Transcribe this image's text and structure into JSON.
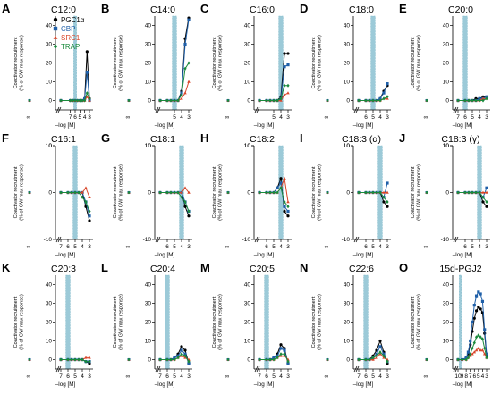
{
  "legend": [
    {
      "name": "PGC1α",
      "color": "#000000",
      "marker": "circle"
    },
    {
      "name": "CBP",
      "color": "#1f5fa8",
      "marker": "square"
    },
    {
      "name": "SRC1",
      "color": "#d9472b",
      "marker": "triangle"
    },
    {
      "name": "TRAP",
      "color": "#1a8a3c",
      "marker": "diamond"
    }
  ],
  "colors": {
    "shade": "#9ccad8",
    "axis": "#000000"
  },
  "common": {
    "ylabel_line1": "Coactivator recruitment",
    "ylabel_line2": "(% of GW max response)",
    "xlabel": "–log [M]",
    "infinity_tick": "∞",
    "y_ticks": [
      0,
      10,
      20,
      30,
      40
    ]
  },
  "chart_data": [
    {
      "type": "line",
      "letter": "A",
      "title": "C12:0",
      "x_ticks": [
        7,
        6,
        5,
        4,
        3
      ],
      "x": [
        9,
        7,
        6.5,
        6,
        5.5,
        5,
        4.5,
        4,
        3.5,
        3
      ],
      "shade": [
        6.3,
        5.7
      ],
      "ylim": [
        -5,
        45
      ],
      "series": [
        {
          "name": "PGC1α",
          "values": [
            0,
            0,
            0,
            0,
            0,
            0,
            0,
            1,
            26,
            1
          ]
        },
        {
          "name": "CBP",
          "values": [
            0,
            0,
            0,
            0,
            0,
            0,
            0,
            1,
            15,
            0
          ]
        },
        {
          "name": "SRC1",
          "values": [
            0,
            0,
            0,
            0,
            0,
            0,
            0,
            0,
            2,
            0
          ]
        },
        {
          "name": "TRAP",
          "values": [
            0,
            0,
            0,
            0,
            0,
            0,
            0,
            0,
            4,
            1
          ]
        }
      ]
    },
    {
      "type": "line",
      "letter": "B",
      "title": "C14:0",
      "x_ticks": [
        5,
        4,
        3
      ],
      "x": [
        7,
        6,
        5.5,
        5,
        4.5,
        4,
        3.5,
        3
      ],
      "shade": [
        5.3,
        4.7
      ],
      "ylim": [
        -5,
        45
      ],
      "series": [
        {
          "name": "PGC1α",
          "values": [
            0,
            0,
            0,
            0,
            0,
            5,
            33,
            44
          ]
        },
        {
          "name": "CBP",
          "values": [
            0,
            0,
            0,
            0,
            0,
            4,
            30,
            43
          ]
        },
        {
          "name": "SRC1",
          "values": [
            0,
            0,
            0,
            0,
            0,
            1,
            4,
            10
          ]
        },
        {
          "name": "TRAP",
          "values": [
            0,
            0,
            0,
            0,
            0,
            3,
            17,
            20
          ]
        }
      ]
    },
    {
      "type": "line",
      "letter": "C",
      "title": "C16:0",
      "x_ticks": [
        5,
        4,
        3
      ],
      "x": [
        7,
        6,
        5.5,
        5,
        4.5,
        4,
        3.5,
        3
      ],
      "shade": [
        4.3,
        3.7
      ],
      "ylim": [
        -5,
        45
      ],
      "series": [
        {
          "name": "PGC1α",
          "values": [
            0,
            0,
            0,
            0,
            0,
            2,
            25,
            25
          ]
        },
        {
          "name": "CBP",
          "values": [
            0,
            0,
            0,
            0,
            0,
            1,
            18,
            19
          ]
        },
        {
          "name": "SRC1",
          "values": [
            0,
            0,
            0,
            0,
            0,
            0,
            3,
            4
          ]
        },
        {
          "name": "TRAP",
          "values": [
            0,
            0,
            0,
            0,
            0,
            1,
            8,
            8
          ]
        }
      ]
    },
    {
      "type": "line",
      "letter": "D",
      "title": "C18:0",
      "x_ticks": [
        6,
        5,
        4,
        3
      ],
      "x": [
        7,
        6,
        5.5,
        5,
        4.5,
        4,
        3.5,
        3
      ],
      "shade": [
        5.3,
        4.7
      ],
      "ylim": [
        -5,
        45
      ],
      "series": [
        {
          "name": "PGC1α",
          "values": [
            0,
            0,
            0,
            0,
            0,
            1,
            5,
            8
          ]
        },
        {
          "name": "CBP",
          "values": [
            0,
            0,
            0,
            0,
            0,
            1,
            4,
            9
          ]
        },
        {
          "name": "SRC1",
          "values": [
            0,
            0,
            0,
            0,
            0,
            0,
            1,
            1
          ]
        },
        {
          "name": "TRAP",
          "values": [
            0,
            0,
            0,
            0,
            0,
            0,
            1,
            2
          ]
        }
      ]
    },
    {
      "type": "line",
      "letter": "E",
      "title": "C20:0",
      "x_ticks": [
        7,
        6,
        5,
        4,
        3
      ],
      "x": [
        7,
        6,
        5.5,
        5,
        4.5,
        4,
        3.5,
        3
      ],
      "shade": [
        6.3,
        5.7
      ],
      "ylim": [
        -5,
        45
      ],
      "series": [
        {
          "name": "PGC1α",
          "values": [
            0,
            0,
            0,
            0,
            1,
            1,
            2,
            2
          ]
        },
        {
          "name": "CBP",
          "values": [
            0,
            0,
            0,
            0,
            0,
            1,
            1,
            2
          ]
        },
        {
          "name": "SRC1",
          "values": [
            0,
            0,
            0,
            0,
            0,
            0,
            1,
            1
          ]
        },
        {
          "name": "TRAP",
          "values": [
            0,
            0,
            0,
            0,
            0,
            0,
            0,
            1
          ]
        }
      ]
    },
    {
      "type": "line",
      "letter": "F",
      "title": "C16:1",
      "x_ticks": [
        7,
        6,
        5,
        4,
        3
      ],
      "x": [
        7,
        6,
        5.5,
        5,
        4.5,
        4,
        3.5,
        3
      ],
      "shade": [
        5.3,
        4.7
      ],
      "ylim": [
        -10,
        10
      ],
      "series": [
        {
          "name": "PGC1α",
          "values": [
            0,
            0,
            0,
            0,
            0,
            0,
            -3,
            -6
          ]
        },
        {
          "name": "CBP",
          "values": [
            0,
            0,
            0,
            0,
            0,
            0,
            -2,
            -5
          ]
        },
        {
          "name": "SRC1",
          "values": [
            0,
            0,
            0,
            0,
            0,
            0,
            1,
            -1
          ]
        },
        {
          "name": "TRAP",
          "values": [
            0,
            0,
            0,
            0,
            0,
            -1,
            -2,
            -4
          ]
        }
      ]
    },
    {
      "type": "line",
      "letter": "G",
      "title": "C18:1",
      "x_ticks": [
        6,
        5,
        4,
        3
      ],
      "x": [
        7,
        6,
        5.5,
        5,
        4.5,
        4,
        3.5,
        3
      ],
      "shade": [
        4.3,
        3.7
      ],
      "ylim": [
        -10,
        10
      ],
      "series": [
        {
          "name": "PGC1α",
          "values": [
            0,
            0,
            0,
            0,
            0,
            0,
            -3,
            -5
          ]
        },
        {
          "name": "CBP",
          "values": [
            0,
            0,
            0,
            0,
            0,
            0,
            -2,
            -4
          ]
        },
        {
          "name": "SRC1",
          "values": [
            0,
            0,
            0,
            0,
            0,
            0,
            1,
            0
          ]
        },
        {
          "name": "TRAP",
          "values": [
            0,
            0,
            0,
            0,
            0,
            -1,
            -2,
            -4
          ]
        }
      ]
    },
    {
      "type": "line",
      "letter": "H",
      "title": "C18:2",
      "x_ticks": [
        6,
        5,
        4,
        3
      ],
      "x": [
        7,
        6,
        5.5,
        5,
        4.5,
        4,
        3.5,
        3
      ],
      "shade": [
        4.3,
        3.7
      ],
      "ylim": [
        -10,
        10
      ],
      "series": [
        {
          "name": "PGC1α",
          "values": [
            0,
            0,
            0,
            0,
            1,
            3,
            -4,
            -5
          ]
        },
        {
          "name": "CBP",
          "values": [
            0,
            0,
            0,
            0,
            1,
            2,
            -3,
            -4
          ]
        },
        {
          "name": "SRC1",
          "values": [
            0,
            0,
            0,
            0,
            0,
            1,
            3,
            -2
          ]
        },
        {
          "name": "TRAP",
          "values": [
            0,
            0,
            0,
            0,
            0,
            1,
            -2,
            -3
          ]
        }
      ]
    },
    {
      "type": "line",
      "letter": "I",
      "title": "C18:3 (α)",
      "x_ticks": [
        6,
        5,
        4,
        3
      ],
      "x": [
        7,
        6,
        5.5,
        5,
        4.5,
        4,
        3.5,
        3
      ],
      "shade": [
        4.3,
        3.7
      ],
      "ylim": [
        -10,
        10
      ],
      "series": [
        {
          "name": "PGC1α",
          "values": [
            0,
            0,
            0,
            0,
            0,
            0,
            -2,
            -3
          ]
        },
        {
          "name": "CBP",
          "values": [
            0,
            0,
            0,
            0,
            0,
            0,
            -1,
            2
          ]
        },
        {
          "name": "SRC1",
          "values": [
            0,
            0,
            0,
            0,
            0,
            0,
            0,
            0
          ]
        },
        {
          "name": "TRAP",
          "values": [
            0,
            0,
            0,
            0,
            0,
            0,
            -1,
            -2
          ]
        }
      ]
    },
    {
      "type": "line",
      "letter": "J",
      "title": "C18:3 (γ)",
      "x_ticks": [
        6,
        5,
        4,
        3
      ],
      "x": [
        7,
        6,
        5.5,
        5,
        4.5,
        4,
        3.5,
        3
      ],
      "shade": [
        4.3,
        3.7
      ],
      "ylim": [
        -10,
        10
      ],
      "series": [
        {
          "name": "PGC1α",
          "values": [
            0,
            0,
            0,
            0,
            0,
            0,
            -2,
            -3
          ]
        },
        {
          "name": "CBP",
          "values": [
            0,
            0,
            0,
            0,
            0,
            0,
            -1,
            1
          ]
        },
        {
          "name": "SRC1",
          "values": [
            0,
            0,
            0,
            0,
            0,
            0,
            0,
            0
          ]
        },
        {
          "name": "TRAP",
          "values": [
            0,
            0,
            0,
            0,
            0,
            0,
            -1,
            -2
          ]
        }
      ]
    },
    {
      "type": "line",
      "letter": "K",
      "title": "C20:3",
      "x_ticks": [
        7,
        6,
        5,
        4,
        3
      ],
      "x": [
        7,
        6,
        5.5,
        5,
        4.5,
        4,
        3.5,
        3
      ],
      "shade": [
        6.3,
        5.7
      ],
      "ylim": [
        -5,
        45
      ],
      "series": [
        {
          "name": "PGC1α",
          "values": [
            0,
            0,
            0,
            0,
            0,
            0,
            -1,
            -2
          ]
        },
        {
          "name": "CBP",
          "values": [
            0,
            0,
            0,
            0,
            0,
            0,
            -1,
            -1
          ]
        },
        {
          "name": "SRC1",
          "values": [
            0,
            0,
            0,
            0,
            0,
            0,
            1,
            1
          ]
        },
        {
          "name": "TRAP",
          "values": [
            0,
            0,
            0,
            0,
            0,
            0,
            -1,
            -1
          ]
        }
      ]
    },
    {
      "type": "line",
      "letter": "L",
      "title": "C20:4",
      "x_ticks": [
        7,
        6,
        5,
        4,
        3
      ],
      "x": [
        7,
        6,
        5.5,
        5,
        4.5,
        4,
        3.5,
        3
      ],
      "shade": [
        6.3,
        5.7
      ],
      "ylim": [
        -5,
        45
      ],
      "series": [
        {
          "name": "PGC1α",
          "values": [
            0,
            0,
            0,
            1,
            3,
            7,
            5,
            -2
          ]
        },
        {
          "name": "CBP",
          "values": [
            0,
            0,
            0,
            1,
            2,
            5,
            3,
            -2
          ]
        },
        {
          "name": "SRC1",
          "values": [
            0,
            0,
            0,
            0,
            1,
            2,
            1,
            0
          ]
        },
        {
          "name": "TRAP",
          "values": [
            0,
            0,
            0,
            0,
            1,
            3,
            2,
            -1
          ]
        }
      ]
    },
    {
      "type": "line",
      "letter": "M",
      "title": "C20:5",
      "x_ticks": [
        7,
        6,
        5,
        4,
        3
      ],
      "x": [
        7,
        6,
        5.5,
        5,
        4.5,
        4,
        3.5,
        3
      ],
      "shade": [
        6.3,
        5.7
      ],
      "ylim": [
        -5,
        45
      ],
      "series": [
        {
          "name": "PGC1α",
          "values": [
            0,
            0,
            0,
            1,
            3,
            8,
            6,
            -2
          ]
        },
        {
          "name": "CBP",
          "values": [
            0,
            0,
            0,
            1,
            2,
            6,
            5,
            -2
          ]
        },
        {
          "name": "SRC1",
          "values": [
            0,
            0,
            0,
            0,
            1,
            2,
            2,
            0
          ]
        },
        {
          "name": "TRAP",
          "values": [
            0,
            0,
            0,
            0,
            1,
            3,
            3,
            -1
          ]
        }
      ]
    },
    {
      "type": "line",
      "letter": "N",
      "title": "C22:6",
      "x_ticks": [
        7,
        6,
        5,
        4,
        3
      ],
      "x": [
        7,
        6,
        5.5,
        5,
        4.5,
        4,
        3.5,
        3
      ],
      "shade": [
        6.3,
        5.7
      ],
      "ylim": [
        -5,
        45
      ],
      "series": [
        {
          "name": "PGC1α",
          "values": [
            0,
            0,
            0,
            2,
            5,
            10,
            4,
            -2
          ]
        },
        {
          "name": "CBP",
          "values": [
            0,
            0,
            0,
            1,
            3,
            7,
            3,
            -1
          ]
        },
        {
          "name": "SRC1",
          "values": [
            0,
            0,
            0,
            0,
            1,
            3,
            1,
            0
          ]
        },
        {
          "name": "TRAP",
          "values": [
            0,
            0,
            0,
            1,
            2,
            4,
            2,
            -1
          ]
        }
      ]
    },
    {
      "type": "line",
      "letter": "O",
      "title": "15d-PGJ2",
      "x_ticks": [
        10,
        9,
        8,
        7,
        6,
        5,
        4,
        3
      ],
      "x": [
        10,
        9,
        8,
        7.5,
        7,
        6.5,
        6,
        5.5,
        5,
        4.5,
        4,
        3.5,
        3
      ],
      "shade": [
        9.7,
        9.2
      ],
      "ylim": [
        -5,
        45
      ],
      "series": [
        {
          "name": "PGC1α",
          "values": [
            0,
            0,
            1,
            3,
            8,
            15,
            22,
            26,
            28,
            27,
            25,
            14,
            2
          ]
        },
        {
          "name": "CBP",
          "values": [
            0,
            0,
            1,
            4,
            10,
            20,
            29,
            34,
            36,
            35,
            31,
            16,
            3
          ]
        },
        {
          "name": "SRC1",
          "values": [
            0,
            0,
            0,
            1,
            2,
            3,
            4,
            5,
            6,
            5,
            5,
            3,
            1
          ]
        },
        {
          "name": "TRAP",
          "values": [
            0,
            0,
            0,
            1,
            3,
            6,
            9,
            12,
            13,
            12,
            11,
            6,
            1
          ]
        }
      ]
    }
  ]
}
